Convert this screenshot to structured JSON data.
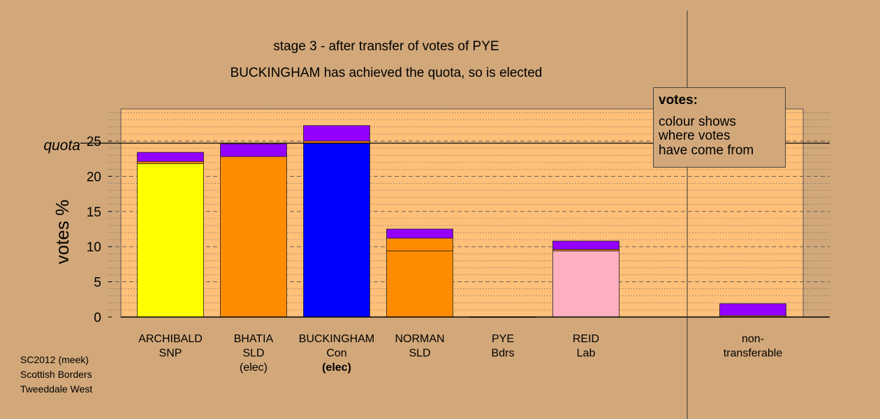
{
  "chart_data": {
    "type": "bar",
    "stacked": true,
    "title": "stage 3 - after transfer of votes of PYE",
    "subtitle": "BUCKINGHAM has achieved the quota, so is elected",
    "ylabel": "votes %",
    "quota_label": "quota",
    "quota": 24.7,
    "ylim": [
      0,
      29.5
    ],
    "yticks": [
      0,
      5,
      10,
      15,
      20,
      25
    ],
    "grid": "dashed horizontal",
    "legend_position": "top-right",
    "categories": [
      {
        "name": "ARCHIBALD",
        "sub": "SNP",
        "note": ""
      },
      {
        "name": "BHATIA",
        "sub": "SLD",
        "note": "(elec)"
      },
      {
        "name": "BUCKINGHAM",
        "sub": "Con",
        "note": "(elec)"
      },
      {
        "name": "NORMAN",
        "sub": "SLD",
        "note": ""
      },
      {
        "name": "PYE",
        "sub": "Bdrs",
        "note": ""
      },
      {
        "name": "REID",
        "sub": "Lab",
        "note": ""
      },
      {
        "name": "non-",
        "sub": "transferable",
        "note": ""
      }
    ],
    "bars": [
      {
        "segments": [
          {
            "value": 21.8,
            "color": "#ffff00"
          },
          {
            "value": 0.3,
            "color": "#ff8c00"
          },
          {
            "value": 1.3,
            "color": "#9400ff"
          }
        ]
      },
      {
        "segments": [
          {
            "value": 22.8,
            "color": "#ff8c00"
          },
          {
            "value": 1.8,
            "color": "#9400ff"
          }
        ]
      },
      {
        "segments": [
          {
            "value": 24.7,
            "color": "#0000ff"
          },
          {
            "value": 0.3,
            "color": "#ff8c00"
          },
          {
            "value": 2.2,
            "color": "#9400ff"
          }
        ]
      },
      {
        "segments": [
          {
            "value": 9.4,
            "color": "#ff8c00"
          },
          {
            "value": 1.8,
            "color": "#ff8c00"
          },
          {
            "value": 1.3,
            "color": "#9400ff"
          }
        ]
      },
      {
        "segments": []
      },
      {
        "segments": [
          {
            "value": 9.4,
            "color": "#ffb0c0"
          },
          {
            "value": 0.2,
            "color": "#ff8c00"
          },
          {
            "value": 1.2,
            "color": "#9400ff"
          }
        ]
      },
      {
        "segments": [
          {
            "value": 0.2,
            "color": "#ff8c00"
          },
          {
            "value": 1.7,
            "color": "#9400ff"
          }
        ]
      }
    ]
  },
  "legend": {
    "title": "votes:",
    "lines": [
      "colour shows",
      "where votes",
      "have come from"
    ]
  },
  "source": {
    "lines": [
      "SC2012 (meek)",
      "Scottish Borders",
      "Tweeddale West"
    ]
  },
  "colors": {
    "background": "#d2a87a",
    "plot_area": "#ffc07a"
  }
}
